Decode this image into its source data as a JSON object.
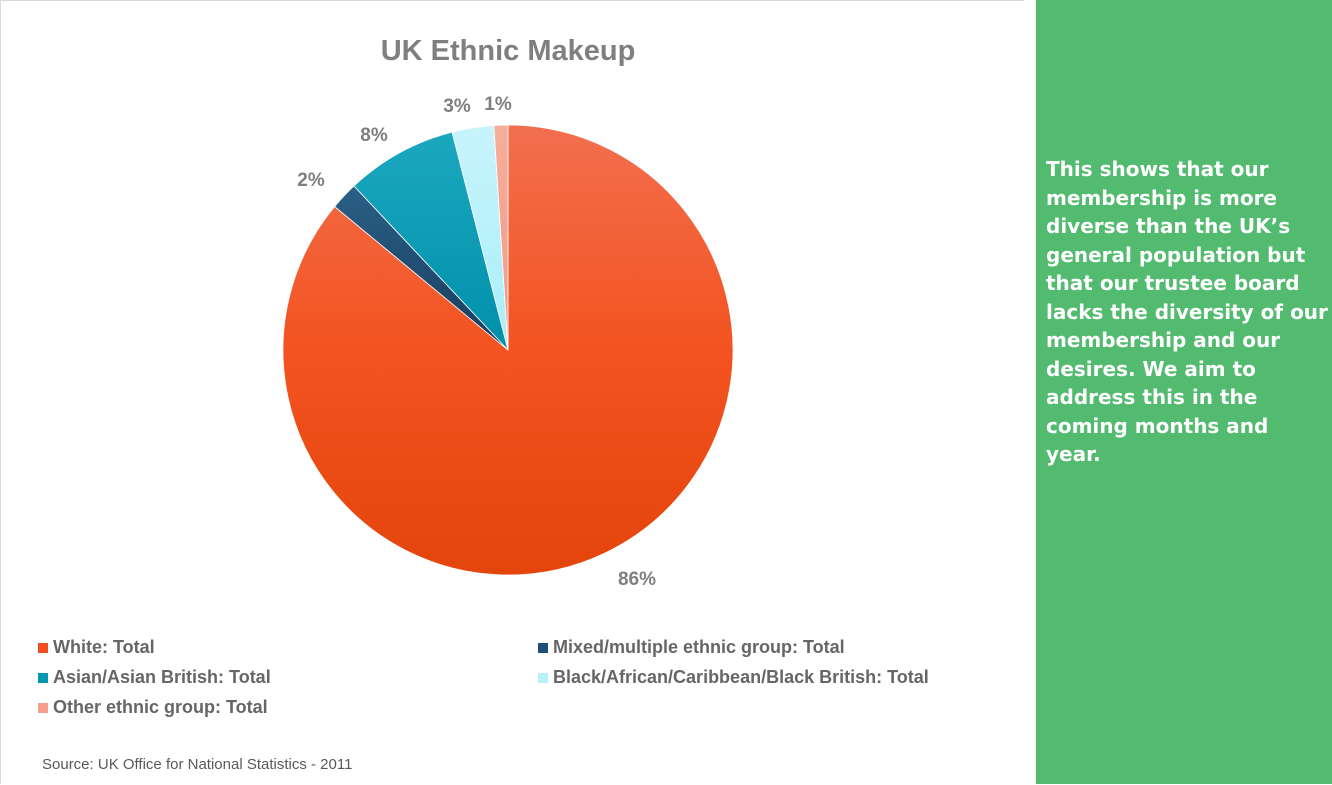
{
  "chart_data": {
    "type": "pie",
    "title": "UK Ethnic Makeup",
    "categories": [
      "White: Total",
      "Mixed/multiple ethnic group: Total",
      "Asian/Asian British: Total",
      "Black/African/Caribbean/Black British: Total",
      "Other ethnic group: Total"
    ],
    "values": [
      86,
      2,
      8,
      3,
      1
    ],
    "data_labels": [
      "86%",
      "2%",
      "8%",
      "3%",
      "1%"
    ],
    "colors": [
      "#f04e1e",
      "#1f4e79",
      "#0097b0",
      "#b8f0fa",
      "#f4a08c"
    ],
    "legend_position": "bottom"
  },
  "source": "Source: UK Office for National Statistics - 2011",
  "side_panel": {
    "text": "This shows that our membership is more diverse than the UK’s general population but that our trustee board lacks the diversity of our membership and our desires. We aim to address this in the coming months and year.",
    "background_color": "#52bb6f"
  }
}
